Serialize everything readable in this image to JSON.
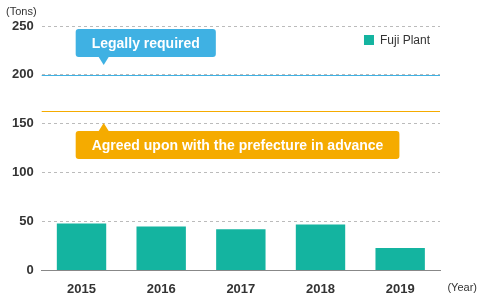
{
  "chart_data": {
    "type": "bar",
    "categories": [
      "2015",
      "2016",
      "2017",
      "2018",
      "2019"
    ],
    "series": [
      {
        "name": "Fuji Plant",
        "color": "#14b4a0",
        "values": [
          48,
          45,
          42,
          47,
          23
        ]
      }
    ],
    "y_label": "(Tons)",
    "x_label": "(Year)",
    "ylim": [
      0,
      250
    ],
    "yticks": [
      0,
      50,
      100,
      150,
      200,
      250
    ],
    "grid": true,
    "legend": "top-right",
    "annotations": [
      {
        "text": "Legally required",
        "value": 200,
        "color": "#3fb1e3"
      },
      {
        "text": "Agreed upon with the prefecture in advance",
        "value": 163,
        "color": "#f5ab00"
      }
    ]
  }
}
